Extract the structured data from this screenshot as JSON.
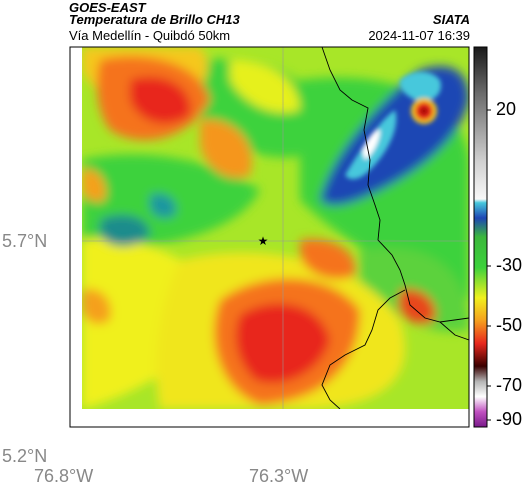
{
  "header": {
    "satellite": "GOES-EAST",
    "product": "Temperatura de Brillo CH13",
    "region": "Vía Medellín - Quibdó 50km",
    "organization": "SIATA",
    "timestamp": "2024-11-07 16:39"
  },
  "axes": {
    "lat_ticks": [
      "5.7°N",
      "5.2°N"
    ],
    "lon_ticks": [
      "76.8°W",
      "76.3°W"
    ]
  },
  "colorbar": {
    "ticks": [
      "20",
      "-30",
      "-50",
      "-70",
      "-90"
    ],
    "unit_hint": "brightness temperature °C"
  },
  "marker": {
    "icon": "star-icon"
  },
  "colors": {
    "warm_red": "#e8281e",
    "orange": "#f5731e",
    "yellow": "#f0f01e",
    "green": "#3cd23c",
    "cold_blue": "#1e46b4",
    "cyan": "#46c8dc",
    "white": "#ffffff",
    "border": "#000000"
  }
}
